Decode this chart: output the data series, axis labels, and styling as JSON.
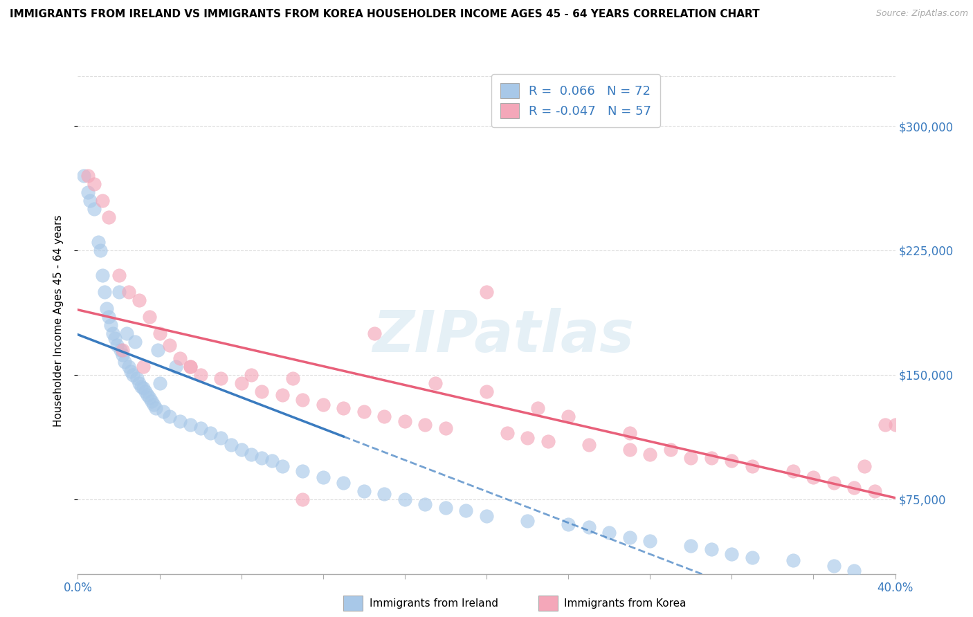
{
  "title": "IMMIGRANTS FROM IRELAND VS IMMIGRANTS FROM KOREA HOUSEHOLDER INCOME AGES 45 - 64 YEARS CORRELATION CHART",
  "source": "Source: ZipAtlas.com",
  "ylabel": "Householder Income Ages 45 - 64 years",
  "legend_entries": [
    {
      "label": "Immigrants from Ireland",
      "R": "0.066",
      "N": "72",
      "color": "#a8c8e8"
    },
    {
      "label": "Immigrants from Korea",
      "R": "-0.047",
      "N": "57",
      "color": "#f4a7b9"
    }
  ],
  "ireland_color": "#a8c8e8",
  "korea_color": "#f4a7b9",
  "ireland_line_color": "#3a7bbf",
  "korea_line_color": "#e8607a",
  "xlim": [
    0.0,
    40.0
  ],
  "ylim": [
    30000,
    335000
  ],
  "yticks": [
    75000,
    150000,
    225000,
    300000
  ],
  "ytick_labels": [
    "$75,000",
    "$150,000",
    "$225,000",
    "$300,000"
  ],
  "ireland_R": 0.066,
  "korea_R": -0.047,
  "ireland_N": 72,
  "korea_N": 57,
  "ireland_x": [
    0.3,
    0.5,
    0.6,
    0.8,
    1.0,
    1.1,
    1.2,
    1.3,
    1.4,
    1.5,
    1.6,
    1.7,
    1.8,
    1.9,
    2.0,
    2.1,
    2.2,
    2.3,
    2.4,
    2.5,
    2.6,
    2.7,
    2.8,
    2.9,
    3.0,
    3.1,
    3.2,
    3.3,
    3.4,
    3.5,
    3.6,
    3.7,
    3.8,
    3.9,
    4.0,
    4.2,
    4.5,
    4.8,
    5.0,
    5.5,
    6.0,
    6.5,
    7.0,
    7.5,
    8.0,
    8.5,
    9.0,
    9.5,
    10.0,
    11.0,
    12.0,
    13.0,
    14.0,
    15.0,
    16.0,
    17.0,
    18.0,
    19.0,
    20.0,
    22.0,
    24.0,
    25.0,
    26.0,
    27.0,
    28.0,
    30.0,
    31.0,
    32.0,
    33.0,
    35.0,
    37.0,
    38.0
  ],
  "ireland_y": [
    270000,
    260000,
    255000,
    250000,
    230000,
    225000,
    210000,
    200000,
    190000,
    185000,
    180000,
    175000,
    172000,
    168000,
    200000,
    165000,
    162000,
    158000,
    175000,
    155000,
    152000,
    150000,
    170000,
    148000,
    145000,
    143000,
    142000,
    140000,
    138000,
    136000,
    134000,
    132000,
    130000,
    165000,
    145000,
    128000,
    125000,
    155000,
    122000,
    120000,
    118000,
    115000,
    112000,
    108000,
    105000,
    102000,
    100000,
    98000,
    95000,
    92000,
    88000,
    85000,
    80000,
    78000,
    75000,
    72000,
    70000,
    68000,
    65000,
    62000,
    60000,
    58000,
    55000,
    52000,
    50000,
    47000,
    45000,
    42000,
    40000,
    38000,
    35000,
    32000
  ],
  "korea_x": [
    0.5,
    0.8,
    1.2,
    1.5,
    2.0,
    2.5,
    3.0,
    3.5,
    4.0,
    4.5,
    5.0,
    5.5,
    6.0,
    7.0,
    8.0,
    9.0,
    10.0,
    11.0,
    12.0,
    13.0,
    14.0,
    15.0,
    16.0,
    17.0,
    18.0,
    20.0,
    21.0,
    22.0,
    23.0,
    25.0,
    27.0,
    28.0,
    30.0,
    32.0,
    33.0,
    35.0,
    36.0,
    37.0,
    38.0,
    39.0,
    40.0,
    2.2,
    3.2,
    5.5,
    8.5,
    10.5,
    14.5,
    17.5,
    20.0,
    22.5,
    24.0,
    27.0,
    29.0,
    31.0,
    38.5,
    39.5,
    11.0
  ],
  "korea_y": [
    270000,
    265000,
    255000,
    245000,
    210000,
    200000,
    195000,
    185000,
    175000,
    168000,
    160000,
    155000,
    150000,
    148000,
    145000,
    140000,
    138000,
    135000,
    132000,
    130000,
    128000,
    125000,
    122000,
    120000,
    118000,
    200000,
    115000,
    112000,
    110000,
    108000,
    105000,
    102000,
    100000,
    98000,
    95000,
    92000,
    88000,
    85000,
    82000,
    80000,
    120000,
    165000,
    155000,
    155000,
    150000,
    148000,
    175000,
    145000,
    140000,
    130000,
    125000,
    115000,
    105000,
    100000,
    95000,
    120000,
    75000
  ]
}
